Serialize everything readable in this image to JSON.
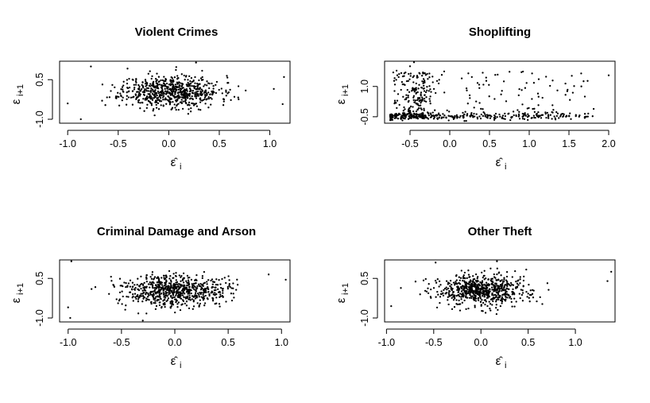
{
  "chart_data": [
    {
      "type": "scatter",
      "title": "Violent Crimes",
      "xlabel": "ε̂",
      "xlabel_sub": "i",
      "ylabel": "ε",
      "ylabel_sub": "i+1",
      "xlim": [
        -1.08,
        1.2
      ],
      "ylim": [
        -1.15,
        1.2
      ],
      "xticks": [
        "-1.0",
        "-0.5",
        "0.0",
        "0.5",
        "1.0"
      ],
      "yticks": [
        "-1.0",
        "0.5"
      ],
      "points": {
        "n": 700,
        "cx": 0.02,
        "cy": 0.05,
        "sx": 0.24,
        "sy": 0.3,
        "seed": 11,
        "extra": [
          [
            -0.77,
            1.0
          ],
          [
            0.27,
            1.15
          ],
          [
            1.14,
            0.6
          ],
          [
            1.04,
            0.15
          ],
          [
            -0.87,
            -1.0
          ],
          [
            -1.0,
            -0.4
          ],
          [
            0.65,
            -0.15
          ]
        ]
      }
    },
    {
      "type": "scatter",
      "title": "Shoplifting",
      "xlabel": "ε̂",
      "xlabel_sub": "i",
      "ylabel": "ε",
      "ylabel_sub": "i+1",
      "xlim": [
        -0.82,
        2.08
      ],
      "ylim": [
        -0.82,
        2.25
      ],
      "xticks": [
        "-0.5",
        "0.0",
        "0.5",
        "1.0",
        "1.5",
        "2.0"
      ],
      "yticks": [
        "-0.5",
        "1.0"
      ],
      "points": {
        "n": 620,
        "mode": "shoplifting",
        "seed": 23,
        "extra": [
          [
            2.0,
            1.55
          ],
          [
            1.7,
            0.5
          ],
          [
            -0.45,
            2.2
          ],
          [
            -0.5,
            2.0
          ]
        ]
      }
    },
    {
      "type": "scatter",
      "title": "Criminal Damage and Arson",
      "xlabel": "ε̂",
      "xlabel_sub": "i",
      "ylabel": "ε",
      "ylabel_sub": "i+1",
      "xlim": [
        -1.08,
        1.08
      ],
      "ylim": [
        -1.15,
        1.2
      ],
      "xticks": [
        "-1.0",
        "-0.5",
        "0.0",
        "0.5",
        "1.0"
      ],
      "yticks": [
        "-1.0",
        "0.5"
      ],
      "points": {
        "n": 700,
        "cx": 0.0,
        "cy": 0.05,
        "sx": 0.24,
        "sy": 0.3,
        "seed": 37,
        "extra": [
          [
            -0.97,
            1.15
          ],
          [
            1.04,
            0.45
          ],
          [
            0.88,
            0.65
          ],
          [
            -1.0,
            -0.6
          ],
          [
            -0.98,
            -1.0
          ],
          [
            -0.3,
            -1.1
          ]
        ]
      }
    },
    {
      "type": "scatter",
      "title": "Other Theft",
      "xlabel": "ε̂",
      "xlabel_sub": "i",
      "ylabel": "ε",
      "ylabel_sub": "i+1",
      "xlim": [
        -1.02,
        1.42
      ],
      "ylim": [
        -1.15,
        1.2
      ],
      "xticks": [
        "-1.0",
        "-0.5",
        "0.0",
        "0.5",
        "1.0"
      ],
      "yticks": [
        "-1.0",
        "0.5"
      ],
      "points": {
        "n": 700,
        "cx": 0.02,
        "cy": 0.05,
        "sx": 0.25,
        "sy": 0.3,
        "seed": 53,
        "extra": [
          [
            1.38,
            0.75
          ],
          [
            1.34,
            0.4
          ],
          [
            -0.48,
            1.1
          ],
          [
            0.17,
            1.15
          ],
          [
            -0.95,
            -0.55
          ]
        ]
      }
    }
  ]
}
